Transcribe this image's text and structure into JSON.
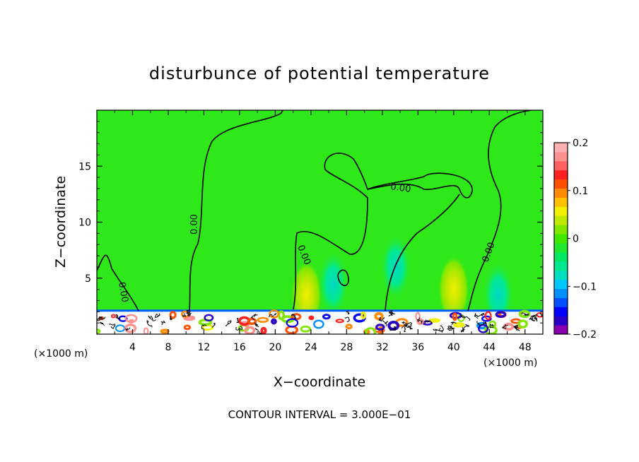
{
  "chart_data": {
    "type": "heatmap",
    "title": "disturbunce of potential temperature",
    "xlabel": "X−coordinate",
    "ylabel": "Z−coordinate",
    "x_unit_left": "(×1000 m)",
    "x_unit_right": "(×1000 m)",
    "xlim": [
      0,
      50
    ],
    "ylim": [
      0,
      20
    ],
    "x_ticks": [
      "4",
      "8",
      "12",
      "16",
      "20",
      "24",
      "28",
      "32",
      "36",
      "40",
      "44",
      "48"
    ],
    "x_tick_values": [
      4,
      8,
      12,
      16,
      20,
      24,
      28,
      32,
      36,
      40,
      44,
      48
    ],
    "y_ticks": [
      "5",
      "10",
      "15"
    ],
    "y_tick_values": [
      5,
      10,
      15
    ],
    "colorbar": {
      "ticks": [
        "0.2",
        "0.1",
        "0",
        "−0.1",
        "−0.2"
      ],
      "tick_values": [
        0.2,
        0.1,
        0,
        -0.1,
        -0.2
      ],
      "range": [
        -0.2,
        0.2
      ],
      "colors": [
        "#8a00b0",
        "#2a00c8",
        "#0000ff",
        "#0050ff",
        "#0090ff",
        "#00c8ff",
        "#00e0c0",
        "#00e890",
        "#00e860",
        "#20e830",
        "#40e800",
        "#80e800",
        "#c0e800",
        "#f0f000",
        "#ffc000",
        "#ff8c00",
        "#ff5000",
        "#ff2020",
        "#ff6060",
        "#ff9090",
        "#ffb0b0"
      ]
    },
    "contour_labels": [
      "0.00",
      "0.00",
      "0.00",
      "0.00",
      "0.00"
    ],
    "contour_interval_note": "CONTOUR INTERVAL = 3.000E−01",
    "grid": false,
    "background_color": "#2ee81a",
    "anomalies": [
      {
        "x": 23.5,
        "z": 3.5,
        "value": 0.08
      },
      {
        "x": 40.0,
        "z": 4.0,
        "value": 0.08
      },
      {
        "x": 33.5,
        "z": 6.0,
        "value": -0.03
      },
      {
        "x": 26.5,
        "z": 4.5,
        "value": -0.03
      },
      {
        "x": 45.0,
        "z": 3.5,
        "value": -0.02
      }
    ]
  }
}
